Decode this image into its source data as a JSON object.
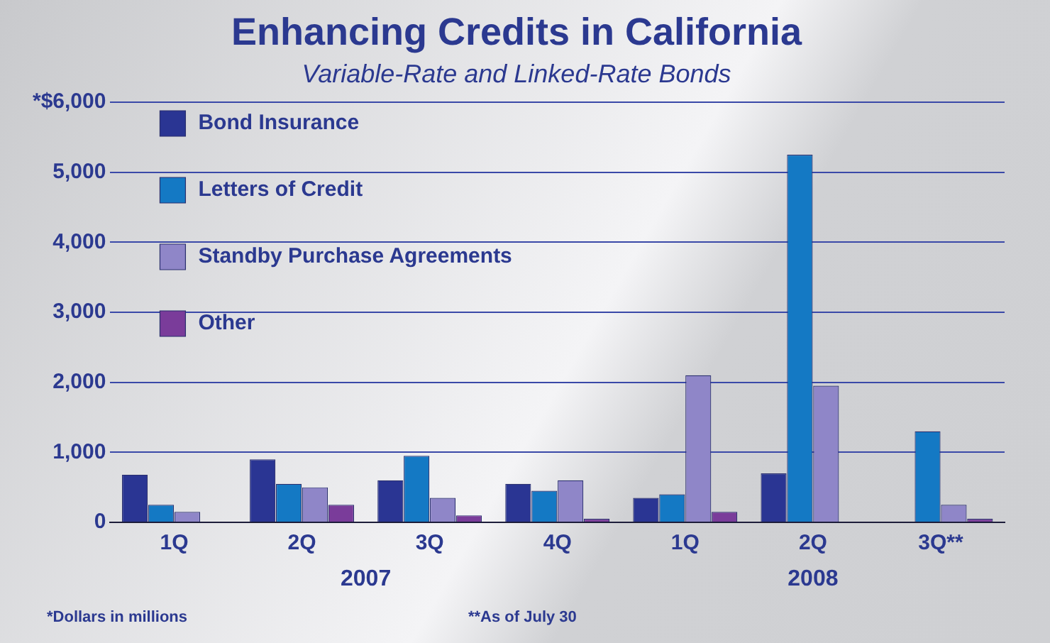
{
  "chart_data": {
    "type": "bar",
    "title": "Enhancing Credits in California",
    "subtitle": "Variable-Rate and Linked-Rate Bonds",
    "categories": [
      "1Q",
      "2Q",
      "3Q",
      "4Q",
      "1Q",
      "2Q",
      "3Q**"
    ],
    "series": [
      {
        "name": "Bond Insurance",
        "color": "#2a3593",
        "values": [
          680,
          900,
          600,
          550,
          350,
          700,
          0
        ]
      },
      {
        "name": "Letters of Credit",
        "color": "#1479c4",
        "values": [
          250,
          550,
          950,
          450,
          400,
          5250,
          1300
        ]
      },
      {
        "name": "Standby Purchase Agreements",
        "color": "#8f86c8",
        "values": [
          150,
          500,
          350,
          600,
          2100,
          1950,
          250
        ]
      },
      {
        "name": "Other",
        "color": "#7a3c9a",
        "values": [
          0,
          250,
          100,
          50,
          150,
          0,
          50
        ]
      }
    ],
    "ylim": [
      0,
      6000
    ],
    "yticks": [
      0,
      {
        "value": 1000,
        "label": "1,000"
      },
      {
        "value": 2000,
        "label": "2,000"
      },
      {
        "value": 3000,
        "label": "3,000"
      },
      {
        "value": 4000,
        "label": "4,000"
      },
      {
        "value": 5000,
        "label": "5,000"
      },
      {
        "value": 6000,
        "label": "*$6,000"
      }
    ],
    "grid": "y",
    "legend": "top left",
    "annotations": [
      "2007",
      "2008",
      "*Dollars in millions",
      "**As of July 30"
    ]
  }
}
